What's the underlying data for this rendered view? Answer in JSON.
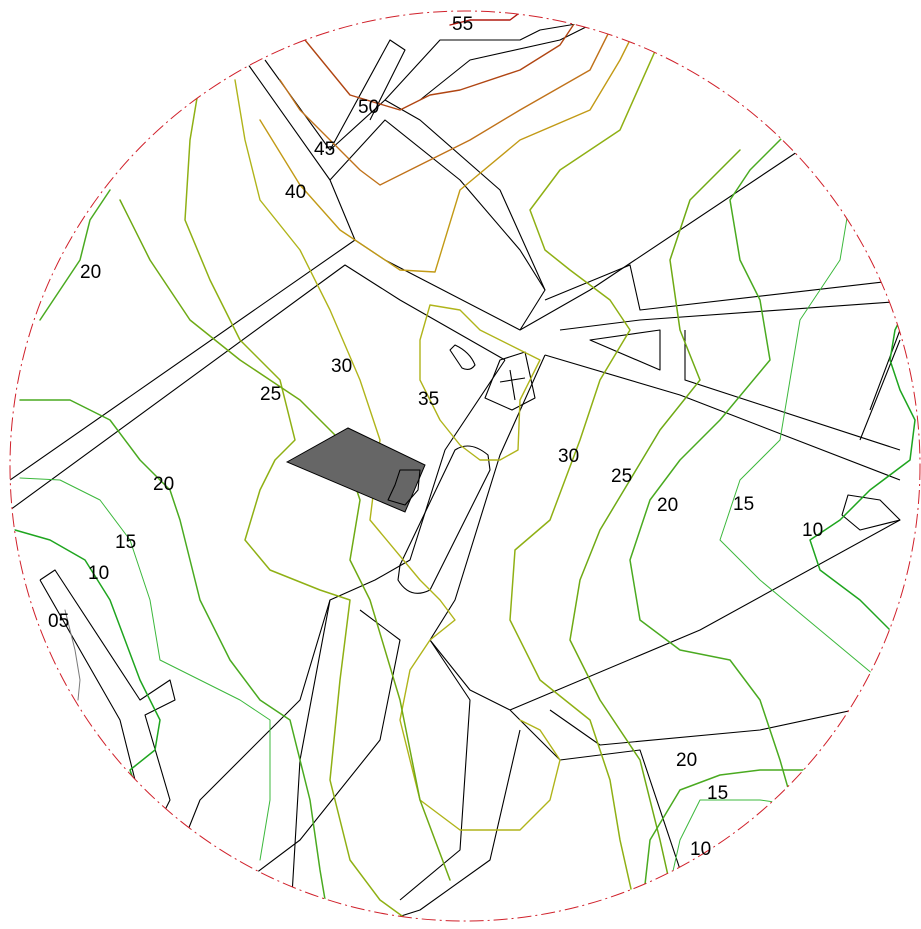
{
  "map": {
    "colors": {
      "c05": "#7a7a7a",
      "c10": "#1fa51f",
      "c15": "#3cb83c",
      "c20": "#4aaa20",
      "c25": "#6faa14",
      "c30": "#8fb014",
      "c35": "#b0b41a",
      "c40": "#c29a16",
      "c45": "#c0721a",
      "c50": "#b04512",
      "c55": "#b01a10",
      "boundary": "#d0202a",
      "building": "#666666",
      "road": "#000000"
    },
    "contour_labels": [
      {
        "id": "55",
        "text": "55"
      },
      {
        "id": "50",
        "text": "50"
      },
      {
        "id": "45",
        "text": "45"
      },
      {
        "id": "40",
        "text": "40"
      },
      {
        "id": "20a",
        "text": "20"
      },
      {
        "id": "30a",
        "text": "30"
      },
      {
        "id": "25a",
        "text": "25"
      },
      {
        "id": "35",
        "text": "35"
      },
      {
        "id": "20b",
        "text": "20"
      },
      {
        "id": "15a",
        "text": "15"
      },
      {
        "id": "10a",
        "text": "10"
      },
      {
        "id": "05",
        "text": "05"
      },
      {
        "id": "30b",
        "text": "30"
      },
      {
        "id": "25b",
        "text": "25"
      },
      {
        "id": "20c",
        "text": "20"
      },
      {
        "id": "15b",
        "text": "15"
      },
      {
        "id": "10b",
        "text": "10"
      },
      {
        "id": "20d",
        "text": "20"
      },
      {
        "id": "15c",
        "text": "15"
      },
      {
        "id": "10c",
        "text": "10"
      }
    ]
  }
}
